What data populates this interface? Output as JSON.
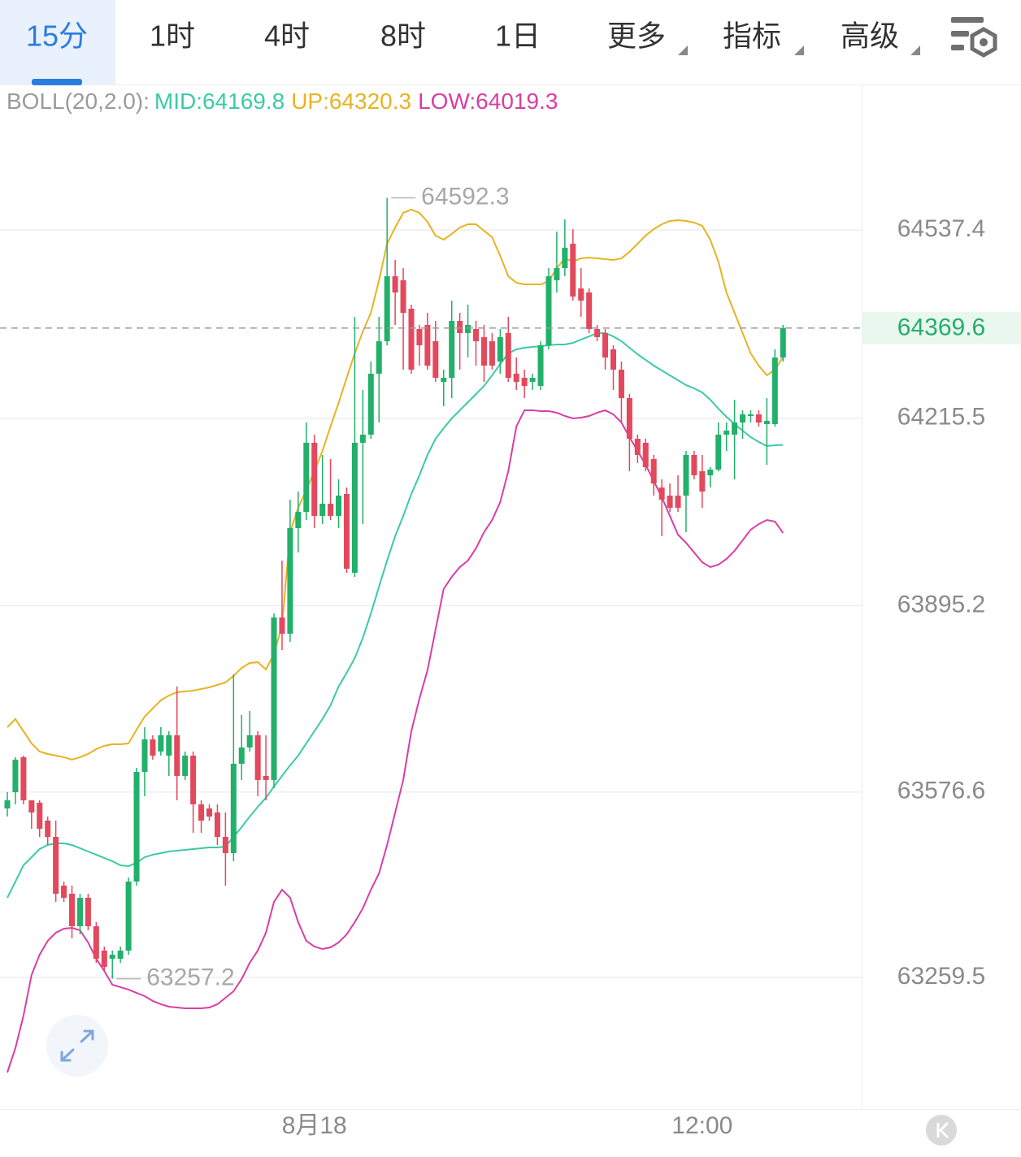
{
  "toolbar": {
    "tabs": [
      "15分",
      "1时",
      "4时",
      "8时",
      "1日",
      "更多",
      "指标",
      "高级"
    ],
    "active": 0
  },
  "chart_data": {
    "type": "candlestick",
    "indicator": "BOLL(20,2.0):",
    "categories": [
      null,
      null,
      null,
      null,
      null,
      null,
      null,
      null,
      null,
      null,
      null,
      null,
      null,
      null,
      null,
      null,
      null,
      null,
      null,
      null,
      null,
      null,
      null,
      null,
      null,
      null,
      null,
      null,
      null,
      null,
      null,
      null,
      null,
      null,
      null,
      null,
      null,
      null,
      "8月18",
      null,
      null,
      null,
      null,
      null,
      null,
      null,
      null,
      null,
      null,
      null,
      null,
      null,
      null,
      null,
      null,
      null,
      null,
      null,
      null,
      null,
      null,
      null,
      null,
      null,
      null,
      null,
      null,
      null,
      null,
      null,
      null,
      null,
      null,
      null,
      null,
      null,
      null,
      null,
      null,
      null,
      null,
      null,
      null,
      null,
      null,
      null,
      "12:00",
      null,
      null,
      null,
      null,
      null,
      null,
      null,
      null,
      null,
      null
    ],
    "open": [
      63548.4,
      63576.2,
      63636.0,
      63562.3,
      63558.2,
      63527.6,
      63499.8,
      63416.5,
      63402.6,
      63347.0,
      63395.7,
      63347.0,
      63305.4,
      63291.5,
      63291.5,
      63305.4,
      63423.4,
      63610.9,
      63666.5,
      63645.7,
      63638.7,
      63673.5,
      63604.0,
      63638.7,
      63555.4,
      63548.4,
      63541.5,
      63499.8,
      63472.0,
      63624.8,
      63652.6,
      63673.5,
      63604.0,
      63597.1,
      63874.9,
      63847.1,
      64027.6,
      64055.4,
      64173.5,
      64048.5,
      64069.3,
      64048.5,
      64086.0,
      63951.3,
      64173.5,
      64187.4,
      64291.6,
      64347.1,
      64458.2,
      64451.3,
      64402.7,
      64368.0,
      64374.9,
      64347.1,
      64277.7,
      64284.6,
      64381.8,
      64361.0,
      64368.0,
      64354.1,
      64347.1,
      64312.4,
      64361.0,
      64291.6,
      64284.6,
      64277.7,
      64270.7,
      64340.2,
      64451.3,
      64472.1,
      64513.8,
      64437.4,
      64430.5,
      64368.0,
      64361.0,
      64333.2,
      64298.5,
      64249.9,
      64180.4,
      64173.5,
      64145.7,
      64097.1,
      64083.2,
      64083.2,
      64083.2,
      64152.7,
      64124.9,
      64117.9,
      64127.7,
      64187.4,
      64187.4,
      64208.2,
      64219.3,
      64222.1,
      64205.4,
      64205.4,
      64319.3
    ],
    "high": [
      63576.2,
      63636.0,
      63638.7,
      63562.3,
      63562.3,
      63534.6,
      63527.6,
      63423.4,
      63416.5,
      63402.6,
      63402.6,
      63354.0,
      63312.3,
      63305.4,
      63312.3,
      63430.4,
      63617.9,
      63687.3,
      63673.5,
      63687.3,
      63680.4,
      63756.8,
      63645.7,
      63645.7,
      63562.3,
      63555.4,
      63555.4,
      63541.5,
      63777.6,
      63708.2,
      63715.1,
      63680.4,
      63673.5,
      63881.8,
      63972.1,
      64076.3,
      64090.2,
      64208.2,
      64187.4,
      64152.7,
      64145.7,
      64111.0,
      64097.1,
      64388.8,
      64263.8,
      64312.4,
      64388.8,
      64592.3,
      64486.0,
      64472.1,
      64409.6,
      64374.9,
      64395.7,
      64381.8,
      64298.5,
      64416.6,
      64395.7,
      64409.6,
      64381.8,
      64374.9,
      64361.0,
      64368.0,
      64388.8,
      64319.3,
      64298.5,
      64291.6,
      64347.1,
      64472.1,
      64534.6,
      64555.5,
      64538.8,
      64472.1,
      64437.4,
      64374.9,
      64368.0,
      64340.2,
      64312.4,
      64256.8,
      64187.4,
      64180.4,
      64152.7,
      64111.0,
      64104.0,
      64117.9,
      64159.6,
      64159.6,
      64152.7,
      64131.8,
      64208.2,
      64208.2,
      64247.1,
      64229.1,
      64229.1,
      64229.1,
      64249.9,
      64333.2,
      64374.9
    ],
    "low": [
      63534.5,
      63555.4,
      63555.4,
      63513.7,
      63499.8,
      63485.9,
      63388.7,
      63388.7,
      63326.2,
      63333.1,
      63340.1,
      63284.5,
      63270.6,
      63257.2,
      63284.5,
      63298.4,
      63416.5,
      63569.3,
      63631.8,
      63638.7,
      63604.0,
      63562.3,
      63597.1,
      63506.8,
      63506.8,
      63527.6,
      63485.9,
      63416.5,
      63458.2,
      63597.1,
      63645.7,
      63569.3,
      63562.3,
      63583.2,
      63819.3,
      63833.2,
      63986.0,
      64041.5,
      64027.6,
      64034.6,
      64041.5,
      64027.6,
      63951.3,
      63944.3,
      64034.6,
      64180.4,
      64208.2,
      64340.2,
      64374.9,
      64298.5,
      64291.6,
      64305.4,
      64298.5,
      64277.7,
      64236.0,
      64249.9,
      64298.5,
      64319.3,
      64305.4,
      64277.7,
      64298.5,
      64291.6,
      64277.7,
      64263.8,
      64249.9,
      64263.8,
      64263.8,
      64333.2,
      64430.5,
      64458.2,
      64416.6,
      64388.8,
      64361.0,
      64347.1,
      64298.5,
      64263.8,
      64208.2,
      64124.9,
      64138.8,
      64124.9,
      64083.2,
      64013.8,
      64055.4,
      64055.4,
      64020.7,
      64111.0,
      64062.4,
      64097.1,
      64124.9,
      64159.6,
      64111.0,
      64180.4,
      64208.2,
      64201.3,
      64136.0,
      64201.3,
      64312.4
    ],
    "close": [
      63562.3,
      63631.8,
      63562.3,
      63541.5,
      63513.7,
      63499.8,
      63402.6,
      63395.7,
      63347.0,
      63395.7,
      63347.0,
      63291.5,
      63277.6,
      63298.4,
      63305.4,
      63423.4,
      63610.9,
      63666.5,
      63638.7,
      63673.5,
      63673.5,
      63604.0,
      63638.7,
      63555.4,
      63527.6,
      63534.6,
      63499.8,
      63472.0,
      63624.8,
      63652.6,
      63673.5,
      63597.1,
      63597.1,
      63874.9,
      63847.1,
      64027.6,
      64055.4,
      64173.5,
      64048.5,
      64069.3,
      64048.5,
      64083.2,
      63958.2,
      64173.5,
      64187.4,
      64291.6,
      64347.1,
      64458.2,
      64430.5,
      64395.7,
      64298.5,
      64340.2,
      64305.4,
      64284.6,
      64284.6,
      64381.8,
      64361.0,
      64374.9,
      64347.1,
      64305.4,
      64305.4,
      64354.1,
      64284.6,
      64277.7,
      64270.7,
      64284.6,
      64340.2,
      64458.2,
      64472.1,
      64506.9,
      64423.5,
      64416.6,
      64368.0,
      64354.1,
      64319.3,
      64298.5,
      64249.9,
      64180.4,
      64152.7,
      64131.8,
      64104.0,
      64076.3,
      64062.4,
      64062.4,
      64152.7,
      64117.9,
      64090.2,
      64127.7,
      64187.4,
      64194.3,
      64208.2,
      64222.1,
      64222.1,
      64208.2,
      64211.0,
      64319.3,
      64369.6
    ],
    "up_color": "#22b06a",
    "down_color": "#e3485c",
    "series": [
      {
        "name": "MID:",
        "color": "#3ccaa6",
        "values": [
          63395.7,
          63423.4,
          63451.2,
          63465.1,
          63479.0,
          63485.9,
          63488.7,
          63488.7,
          63485.9,
          63480.4,
          63474.8,
          63469.3,
          63463.7,
          63458.2,
          63451.2,
          63449.8,
          63455.4,
          63465.1,
          63469.3,
          63472.0,
          63474.8,
          63476.2,
          63477.6,
          63479.0,
          63480.4,
          63481.8,
          63481.8,
          63483.1,
          63499.8,
          63516.5,
          63534.6,
          63551.2,
          63566.5,
          63585.9,
          63604.0,
          63622.1,
          63638.7,
          63659.6,
          63680.4,
          63701.2,
          63724.8,
          63756.8,
          63780.4,
          63805.4,
          63840.1,
          63881.8,
          63927.6,
          63972.1,
          64013.8,
          64048.5,
          64086.0,
          64117.9,
          64152.7,
          64180.4,
          64198.5,
          64215.2,
          64229.1,
          64242.9,
          64256.8,
          64270.7,
          64288.8,
          64308.2,
          64326.3,
          64333.2,
          64336.0,
          64337.4,
          64338.8,
          64340.2,
          64341.6,
          64341.6,
          64344.3,
          64349.9,
          64355.4,
          64361.0,
          64361.0,
          64355.4,
          64347.1,
          64336.0,
          64324.9,
          64315.2,
          64305.4,
          64297.1,
          64288.8,
          64280.4,
          64272.1,
          64266.5,
          64259.6,
          64247.1,
          64231.8,
          64217.9,
          64205.4,
          64194.3,
          64183.2,
          64174.9,
          64167.9,
          64169.3,
          64169.8
        ]
      },
      {
        "name": "UP:",
        "color": "#e8b321",
        "values": [
          63687.3,
          63701.2,
          63680.4,
          63659.6,
          63645.7,
          63641.5,
          63638.7,
          63636.0,
          63631.8,
          63636.0,
          63641.5,
          63649.8,
          63655.4,
          63658.2,
          63658.2,
          63659.6,
          63683.2,
          63705.4,
          63719.3,
          63733.2,
          63741.5,
          63747.1,
          63748.5,
          63749.8,
          63752.6,
          63755.4,
          63759.6,
          63763.7,
          63774.9,
          63788.7,
          63797.1,
          63798.5,
          63786.0,
          63812.4,
          63861.0,
          64020.7,
          64062.4,
          64092.9,
          64124.9,
          64159.6,
          64201.3,
          64241.6,
          64284.6,
          64326.3,
          64363.8,
          64395.7,
          64451.3,
          64513.8,
          64541.6,
          64566.6,
          64572.1,
          64566.6,
          64551.3,
          64527.7,
          64520.7,
          64530.5,
          64541.6,
          64547.1,
          64547.1,
          64536.0,
          64524.9,
          64493.0,
          64458.2,
          64447.1,
          64444.3,
          64444.3,
          64444.3,
          64449.9,
          64472.1,
          64488.8,
          64483.2,
          64488.8,
          64490.2,
          64488.8,
          64487.4,
          64486.0,
          64488.8,
          64499.9,
          64513.8,
          64527.7,
          64538.8,
          64547.1,
          64552.7,
          64554.1,
          64552.7,
          64549.9,
          64544.4,
          64520.7,
          64483.2,
          64430.5,
          64395.7,
          64361.0,
          64326.3,
          64305.4,
          64288.8,
          64298.5,
          64320.3
        ]
      },
      {
        "name": "LOW:",
        "color": "#d93ea3",
        "values": [
          63097.0,
          63138.7,
          63194.2,
          63263.7,
          63298.4,
          63322.0,
          63335.9,
          63342.9,
          63344.3,
          63340.1,
          63319.3,
          63291.5,
          63270.6,
          63247.0,
          63242.9,
          63238.7,
          63233.1,
          63227.6,
          63219.3,
          63213.7,
          63209.5,
          63208.1,
          63206.8,
          63206.8,
          63206.8,
          63208.1,
          63213.7,
          63224.8,
          63235.9,
          63256.8,
          63284.5,
          63305.4,
          63335.9,
          63388.7,
          63409.5,
          63395.7,
          63354.0,
          63322.0,
          63312.3,
          63308.1,
          63310.9,
          63319.3,
          63333.1,
          63354.0,
          63377.6,
          63409.5,
          63437.3,
          63485.9,
          63541.5,
          63597.1,
          63680.4,
          63736.0,
          63784.6,
          63854.0,
          63923.5,
          63944.3,
          63961.0,
          63972.1,
          63992.9,
          64020.7,
          64041.5,
          64072.1,
          64124.9,
          64201.3,
          64229.1,
          64229.1,
          64227.7,
          64227.7,
          64224.9,
          64219.3,
          64215.2,
          64216.5,
          64219.3,
          64224.9,
          64229.1,
          64222.1,
          64208.2,
          64183.2,
          64159.6,
          64136.0,
          64108.2,
          64080.4,
          64048.5,
          64016.5,
          64002.6,
          63986.0,
          63969.3,
          63961.0,
          63965.1,
          63974.9,
          63988.8,
          64006.8,
          64024.9,
          64034.6,
          64041.5,
          64038.8,
          64019.3
        ]
      }
    ],
    "ylim": [
      63034.5,
      64784.6
    ],
    "yticks": [
      63259.5,
      63576.6,
      63895.2,
      64215.5,
      64537.4
    ],
    "grid": true
  }
}
